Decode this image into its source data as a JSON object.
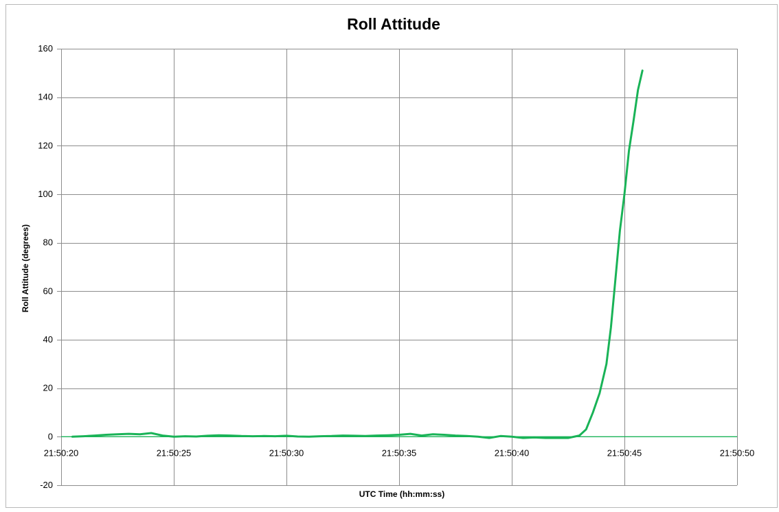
{
  "chart_data": {
    "type": "line",
    "title": "Roll Attitude",
    "xlabel": "UTC Time (hh:mm:ss)",
    "ylabel": "Roll Attitude (degrees)",
    "xlim": [
      "21:50:20",
      "21:50:50"
    ],
    "ylim": [
      -20,
      160
    ],
    "x_ticks": [
      "21:50:20",
      "21:50:25",
      "21:50:30",
      "21:50:35",
      "21:50:40",
      "21:50:45",
      "21:50:50"
    ],
    "y_ticks": [
      -20,
      0,
      20,
      40,
      60,
      80,
      100,
      120,
      140,
      160
    ],
    "grid": true,
    "legend": "none",
    "line_color": "#19b357",
    "series": [
      {
        "x": [
          "21:50:20.5",
          "21:50:21.0",
          "21:50:21.5",
          "21:50:22.0",
          "21:50:22.5",
          "21:50:23.0",
          "21:50:23.5",
          "21:50:24.0",
          "21:50:24.5",
          "21:50:25.0",
          "21:50:25.5",
          "21:50:26.0",
          "21:50:26.5",
          "21:50:27.0",
          "21:50:27.5",
          "21:50:28.0",
          "21:50:28.5",
          "21:50:29.0",
          "21:50:29.5",
          "21:50:30.0",
          "21:50:30.5",
          "21:50:31.0",
          "21:50:31.5",
          "21:50:32.0",
          "21:50:32.5",
          "21:50:33.0",
          "21:50:33.5",
          "21:50:34.0",
          "21:50:34.5",
          "21:50:35.0",
          "21:50:35.5",
          "21:50:36.0",
          "21:50:36.5",
          "21:50:37.0",
          "21:50:37.5",
          "21:50:38.0",
          "21:50:38.5",
          "21:50:39.0",
          "21:50:39.5",
          "21:50:40.0",
          "21:50:40.5",
          "21:50:41.0",
          "21:50:41.5",
          "21:50:42.0",
          "21:50:42.5",
          "21:50:43.0",
          "21:50:43.3",
          "21:50:43.6",
          "21:50:43.9",
          "21:50:44.2",
          "21:50:44.4",
          "21:50:44.6",
          "21:50:44.8",
          "21:50:45.0",
          "21:50:45.2",
          "21:50:45.4",
          "21:50:45.6",
          "21:50:45.8"
        ],
        "values": [
          0.0,
          0.2,
          0.5,
          0.8,
          1.0,
          1.2,
          1.0,
          1.5,
          0.5,
          0.0,
          0.2,
          0.1,
          0.4,
          0.6,
          0.5,
          0.3,
          0.2,
          0.3,
          0.2,
          0.4,
          0.1,
          0.0,
          0.2,
          0.3,
          0.5,
          0.4,
          0.3,
          0.5,
          0.6,
          0.8,
          1.2,
          0.5,
          1.0,
          0.8,
          0.5,
          0.3,
          0.0,
          -0.5,
          0.3,
          0.0,
          -0.5,
          -0.3,
          -0.5,
          -0.5,
          -0.5,
          0.5,
          3.0,
          10.0,
          18.0,
          30.0,
          45.0,
          65.0,
          85.0,
          100.0,
          118.0,
          130.0,
          143.0,
          151.0
        ]
      }
    ]
  }
}
